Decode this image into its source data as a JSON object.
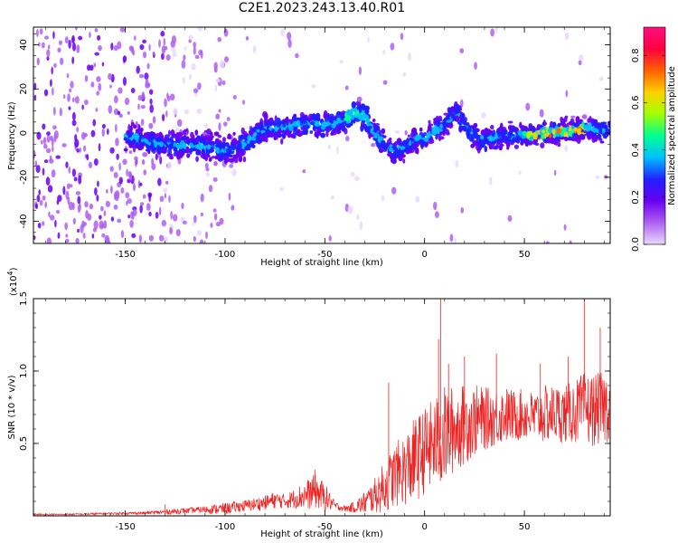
{
  "figure": {
    "title": "C2E1.2023.243.13.40.R01"
  },
  "chart_data": [
    {
      "type": "heatmap",
      "title": "",
      "xlabel": "Height of straight line (km)",
      "ylabel": "Frequency (Hz)",
      "xlim": [
        -196,
        93
      ],
      "ylim": [
        -50,
        48
      ],
      "xticks": [
        -150,
        -100,
        -50,
        0,
        50
      ],
      "yticks": [
        -40,
        -20,
        0,
        20,
        40
      ],
      "colorbar": {
        "label": "Normalized spectral amplitude",
        "range": [
          0,
          0.92
        ],
        "ticks": [
          0.0,
          0.2,
          0.4,
          0.6,
          0.8
        ],
        "colormap": [
          "#e8d8ff",
          "#b060f0",
          "#6a00f0",
          "#2020ff",
          "#00c0ff",
          "#00ff90",
          "#a0ff00",
          "#ffd000",
          "#ff6000",
          "#ff0040",
          "#ff1080"
        ]
      },
      "ridge_frequency": {
        "x": [
          -145,
          -135,
          -120,
          -110,
          -100,
          -90,
          -80,
          -70,
          -60,
          -50,
          -45,
          -40,
          -35,
          -30,
          -25,
          -20,
          -15,
          -10,
          -5,
          0,
          5,
          10,
          15,
          20,
          25,
          30,
          40,
          50,
          60,
          70,
          80,
          90
        ],
        "y": [
          -2,
          -5,
          -6,
          -6,
          -8,
          -5,
          2,
          3,
          4,
          4,
          5,
          6,
          10,
          7,
          0,
          -5,
          -9,
          -6,
          -3,
          -2,
          1,
          3,
          10,
          3,
          -2,
          -3,
          -1,
          -1,
          0,
          1,
          2,
          2
        ]
      }
    },
    {
      "type": "line",
      "title": "",
      "xlabel": "Height of straight line (km)",
      "ylabel": "SNR (10 * v/v)",
      "y_multiplier": "(x10",
      "y_multiplier_exp": "4",
      "y_multiplier_close": ")",
      "xlim": [
        -196,
        93
      ],
      "ylim": [
        0,
        1.5
      ],
      "xticks": [
        -150,
        -100,
        -50,
        0,
        50
      ],
      "yticks": [
        0.5,
        1.0,
        1.5
      ],
      "ytick_labels": [
        "0.5",
        "1.0",
        "1.5"
      ],
      "color": "#ee2222",
      "series": [
        {
          "name": "",
          "x": [
            -196,
            -180,
            -160,
            -140,
            -125,
            -115,
            -100,
            -90,
            -80,
            -75,
            -70,
            -65,
            -60,
            -55,
            -50,
            -45,
            -40,
            -35,
            -30,
            -25,
            -20,
            -15,
            -10,
            -5,
            0,
            5,
            10,
            15,
            20,
            25,
            30,
            35,
            40,
            45,
            50,
            55,
            60,
            65,
            70,
            75,
            80,
            85,
            93
          ],
          "y_base": [
            0.01,
            0.01,
            0.015,
            0.02,
            0.03,
            0.04,
            0.05,
            0.07,
            0.09,
            0.11,
            0.1,
            0.12,
            0.14,
            0.17,
            0.13,
            0.07,
            0.05,
            0.06,
            0.09,
            0.14,
            0.2,
            0.28,
            0.32,
            0.38,
            0.45,
            0.5,
            0.55,
            0.6,
            0.63,
            0.66,
            0.67,
            0.68,
            0.7,
            0.69,
            0.7,
            0.68,
            0.7,
            0.71,
            0.7,
            0.72,
            0.74,
            0.73,
            0.76
          ],
          "y_spread": [
            0.005,
            0.005,
            0.008,
            0.01,
            0.02,
            0.02,
            0.04,
            0.04,
            0.05,
            0.06,
            0.05,
            0.07,
            0.1,
            0.12,
            0.1,
            0.03,
            0.02,
            0.04,
            0.08,
            0.12,
            0.18,
            0.22,
            0.25,
            0.3,
            0.3,
            0.32,
            0.35,
            0.3,
            0.28,
            0.25,
            0.22,
            0.2,
            0.2,
            0.18,
            0.18,
            0.18,
            0.2,
            0.2,
            0.2,
            0.22,
            0.25,
            0.25,
            0.25
          ],
          "peaks": [
            {
              "x": -130,
              "y": 0.08
            },
            {
              "x": -55,
              "y": 0.32
            },
            {
              "x": -18,
              "y": 0.92
            },
            {
              "x": 8,
              "y": 1.5
            },
            {
              "x": 7,
              "y": 1.22
            },
            {
              "x": 12,
              "y": 1.05
            },
            {
              "x": 20,
              "y": 1.1
            },
            {
              "x": 36,
              "y": 1.12
            },
            {
              "x": 58,
              "y": 1.05
            },
            {
              "x": 72,
              "y": 1.1
            },
            {
              "x": 80,
              "y": 1.5
            },
            {
              "x": 88,
              "y": 1.3
            }
          ]
        }
      ]
    }
  ]
}
